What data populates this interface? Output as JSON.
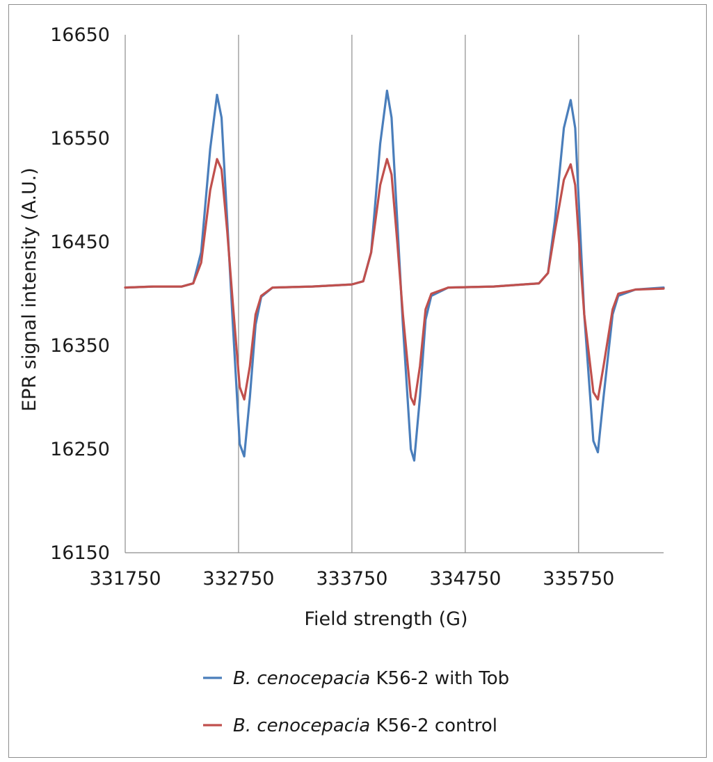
{
  "chart_data": {
    "type": "line",
    "title": "",
    "xlabel": "Field strength (G)",
    "ylabel": "EPR signal intensity (A.U.)",
    "xlim": [
      331750,
      336500
    ],
    "ylim": [
      16150,
      16650
    ],
    "x_ticks": [
      331750,
      332750,
      333750,
      334750,
      335750
    ],
    "y_ticks": [
      16150,
      16250,
      16350,
      16450,
      16550,
      16650
    ],
    "x_tick_labels": [
      "331750",
      "332750",
      "333750",
      "334750",
      "335750"
    ],
    "y_tick_labels": [
      "16150",
      "16250",
      "16350",
      "16450",
      "16550",
      "16650"
    ],
    "grid": "vertical",
    "legend": "bottom",
    "series": [
      {
        "name_italic": "B. cenocepacia",
        "name_rest": " K56-2 with Tob",
        "color": "#4a7ebb",
        "points": [
          [
            331750,
            16406
          ],
          [
            332000,
            16407
          ],
          [
            332250,
            16407
          ],
          [
            332350,
            16410
          ],
          [
            332420,
            16440
          ],
          [
            332500,
            16540
          ],
          [
            332560,
            16592
          ],
          [
            332600,
            16570
          ],
          [
            332650,
            16470
          ],
          [
            332700,
            16370
          ],
          [
            332760,
            16255
          ],
          [
            332800,
            16243
          ],
          [
            332850,
            16300
          ],
          [
            332900,
            16370
          ],
          [
            332950,
            16397
          ],
          [
            333050,
            16406
          ],
          [
            333400,
            16407
          ],
          [
            333750,
            16409
          ],
          [
            333850,
            16412
          ],
          [
            333920,
            16440
          ],
          [
            334000,
            16545
          ],
          [
            334060,
            16596
          ],
          [
            334100,
            16570
          ],
          [
            334150,
            16470
          ],
          [
            334200,
            16370
          ],
          [
            334270,
            16250
          ],
          [
            334300,
            16239
          ],
          [
            334350,
            16300
          ],
          [
            334400,
            16375
          ],
          [
            334450,
            16398
          ],
          [
            334600,
            16406
          ],
          [
            335000,
            16407
          ],
          [
            335400,
            16410
          ],
          [
            335480,
            16420
          ],
          [
            335540,
            16470
          ],
          [
            335620,
            16560
          ],
          [
            335680,
            16587
          ],
          [
            335720,
            16560
          ],
          [
            335760,
            16470
          ],
          [
            335800,
            16380
          ],
          [
            335880,
            16258
          ],
          [
            335920,
            16247
          ],
          [
            335970,
            16300
          ],
          [
            336050,
            16380
          ],
          [
            336100,
            16398
          ],
          [
            336250,
            16404
          ],
          [
            336500,
            16406
          ]
        ]
      },
      {
        "name_italic": "B. cenocepacia",
        "name_rest": " K56-2 control",
        "color": "#c0504d",
        "points": [
          [
            331750,
            16406
          ],
          [
            332000,
            16407
          ],
          [
            332250,
            16407
          ],
          [
            332350,
            16410
          ],
          [
            332420,
            16430
          ],
          [
            332500,
            16500
          ],
          [
            332560,
            16530
          ],
          [
            332600,
            16520
          ],
          [
            332650,
            16460
          ],
          [
            332700,
            16390
          ],
          [
            332760,
            16310
          ],
          [
            332800,
            16298
          ],
          [
            332850,
            16330
          ],
          [
            332900,
            16380
          ],
          [
            332950,
            16398
          ],
          [
            333050,
            16406
          ],
          [
            333400,
            16407
          ],
          [
            333750,
            16409
          ],
          [
            333850,
            16412
          ],
          [
            333920,
            16440
          ],
          [
            334000,
            16505
          ],
          [
            334060,
            16530
          ],
          [
            334100,
            16515
          ],
          [
            334150,
            16450
          ],
          [
            334200,
            16380
          ],
          [
            334270,
            16300
          ],
          [
            334300,
            16293
          ],
          [
            334350,
            16330
          ],
          [
            334400,
            16385
          ],
          [
            334450,
            16400
          ],
          [
            334600,
            16406
          ],
          [
            335000,
            16407
          ],
          [
            335400,
            16410
          ],
          [
            335480,
            16420
          ],
          [
            335540,
            16460
          ],
          [
            335620,
            16510
          ],
          [
            335680,
            16525
          ],
          [
            335720,
            16505
          ],
          [
            335760,
            16440
          ],
          [
            335800,
            16380
          ],
          [
            335880,
            16305
          ],
          [
            335920,
            16298
          ],
          [
            335970,
            16330
          ],
          [
            336050,
            16385
          ],
          [
            336100,
            16400
          ],
          [
            336250,
            16404
          ],
          [
            336500,
            16405
          ]
        ]
      }
    ]
  }
}
